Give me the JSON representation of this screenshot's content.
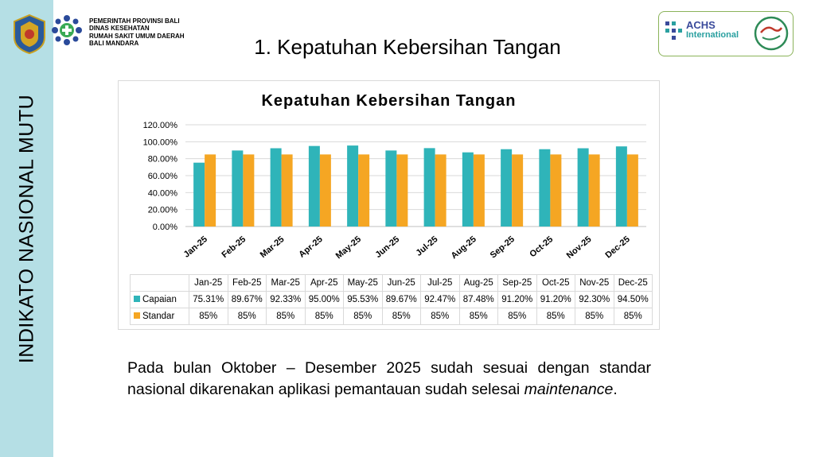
{
  "sidebar": {
    "vertical_title": "INDIKATO NASIONAL MUTU"
  },
  "header": {
    "org_lines": [
      "PEMERINTAH PROVINSI BALI",
      "DINAS KESEHATAN",
      "RUMAH SAKIT UMUM DAERAH",
      "BALI MANDARA"
    ],
    "title": "1. Kepatuhan Kebersihan Tangan",
    "badge": {
      "achs_line1": "ACHS",
      "achs_line2": "International"
    }
  },
  "colors": {
    "capaian": "#2fb4b9",
    "standar": "#f5a623",
    "sidebar": "#b5dfe5"
  },
  "chart_data": {
    "type": "bar",
    "title": "Kepatuhan Kebersihan Tangan",
    "categories": [
      "Jan-25",
      "Feb-25",
      "Mar-25",
      "Apr-25",
      "May-25",
      "Jun-25",
      "Jul-25",
      "Aug-25",
      "Sep-25",
      "Oct-25",
      "Nov-25",
      "Dec-25"
    ],
    "series": [
      {
        "name": "Capaian",
        "values": [
          75.31,
          89.67,
          92.33,
          95.0,
          95.53,
          89.67,
          92.47,
          87.48,
          91.2,
          91.2,
          92.3,
          94.5
        ],
        "labels": [
          "75.31%",
          "89.67%",
          "92.33%",
          "95.00%",
          "95.53%",
          "89.67%",
          "92.47%",
          "87.48%",
          "91.20%",
          "91.20%",
          "92.30%",
          "94.50%"
        ]
      },
      {
        "name": "Standar",
        "values": [
          85,
          85,
          85,
          85,
          85,
          85,
          85,
          85,
          85,
          85,
          85,
          85
        ],
        "labels": [
          "85%",
          "85%",
          "85%",
          "85%",
          "85%",
          "85%",
          "85%",
          "85%",
          "85%",
          "85%",
          "85%",
          "85%"
        ]
      }
    ],
    "ylim": [
      0,
      120
    ],
    "yticks": [
      "0.00%",
      "20.00%",
      "40.00%",
      "60.00%",
      "80.00%",
      "100.00%",
      "120.00%"
    ],
    "grid": true,
    "legend": "data-table"
  },
  "paragraph": {
    "text": "Pada bulan Oktober – Desember 2025 sudah sesuai dengan standar nasional dikarenakan aplikasi pemantauan sudah selesai ",
    "italic": "maintenance",
    "end": "."
  }
}
